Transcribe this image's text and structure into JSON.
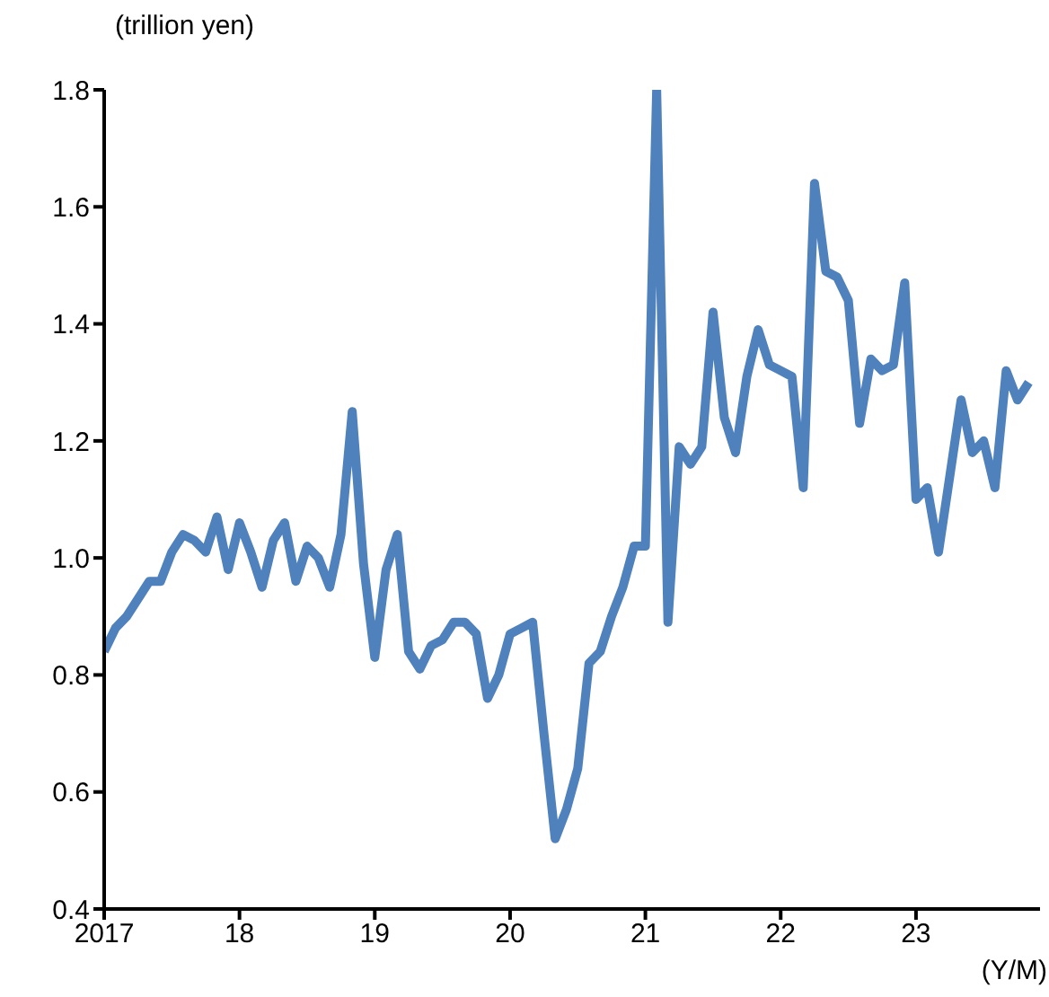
{
  "chart_data": {
    "type": "line",
    "xlabel": "(Y/M)",
    "ylabel": "(trillion yen)",
    "x": [
      "2017-01",
      "2017-02",
      "2017-03",
      "2017-04",
      "2017-05",
      "2017-06",
      "2017-07",
      "2017-08",
      "2017-09",
      "2017-10",
      "2017-11",
      "2017-12",
      "2018-01",
      "2018-02",
      "2018-03",
      "2018-04",
      "2018-05",
      "2018-06",
      "2018-07",
      "2018-08",
      "2018-09",
      "2018-10",
      "2018-11",
      "2018-12",
      "2019-01",
      "2019-02",
      "2019-03",
      "2019-04",
      "2019-05",
      "2019-06",
      "2019-07",
      "2019-08",
      "2019-09",
      "2019-10",
      "2019-11",
      "2019-12",
      "2020-01",
      "2020-02",
      "2020-03",
      "2020-04",
      "2020-05",
      "2020-06",
      "2020-07",
      "2020-08",
      "2020-09",
      "2020-10",
      "2020-11",
      "2020-12",
      "2021-01",
      "2021-02",
      "2021-03",
      "2021-04",
      "2021-05",
      "2021-06",
      "2021-07",
      "2021-08",
      "2021-09",
      "2021-10",
      "2021-11",
      "2021-12",
      "2022-01",
      "2022-02",
      "2022-03",
      "2022-04",
      "2022-05",
      "2022-06",
      "2022-07",
      "2022-08",
      "2022-09",
      "2022-10",
      "2022-11",
      "2022-12",
      "2023-01",
      "2023-02",
      "2023-03",
      "2023-04",
      "2023-05",
      "2023-06",
      "2023-07",
      "2023-08",
      "2023-09",
      "2023-10",
      "2023-11"
    ],
    "series": [
      {
        "color": "#4f81bd",
        "values": [
          0.84,
          0.88,
          0.9,
          0.93,
          0.96,
          0.96,
          1.01,
          1.04,
          1.03,
          1.01,
          1.07,
          0.98,
          1.06,
          1.01,
          0.95,
          1.03,
          1.06,
          0.96,
          1.02,
          1.0,
          0.95,
          1.04,
          1.25,
          0.99,
          0.83,
          0.98,
          1.04,
          0.84,
          0.81,
          0.85,
          0.86,
          0.89,
          0.89,
          0.87,
          0.76,
          0.8,
          0.87,
          0.88,
          0.89,
          0.7,
          0.52,
          0.57,
          0.64,
          0.82,
          0.84,
          0.9,
          0.95,
          1.02,
          1.02,
          1.8,
          0.89,
          1.19,
          1.16,
          1.19,
          1.42,
          1.24,
          1.18,
          1.31,
          1.39,
          1.33,
          1.32,
          1.31,
          1.12,
          1.64,
          1.49,
          1.48,
          1.44,
          1.23,
          1.34,
          1.32,
          1.33,
          1.47,
          1.1,
          1.12,
          1.01,
          1.14,
          1.27,
          1.18,
          1.2,
          1.12,
          1.32,
          1.27,
          1.3
        ]
      }
    ],
    "xlim": [
      "2017-01",
      "2023-12"
    ],
    "xticks": [
      {
        "value": "2017-01",
        "label": "2017"
      },
      {
        "value": "2018-01",
        "label": "18"
      },
      {
        "value": "2019-01",
        "label": "19"
      },
      {
        "value": "2020-01",
        "label": "20"
      },
      {
        "value": "2021-01",
        "label": "21"
      },
      {
        "value": "2022-01",
        "label": "22"
      },
      {
        "value": "2023-01",
        "label": "23"
      }
    ],
    "ylim": [
      0.4,
      1.8
    ],
    "yticks": [
      0.4,
      0.6,
      0.8,
      {
        "value": 1,
        "label": "1.0"
      },
      1.2,
      1.4,
      1.6,
      1.8
    ],
    "grid": false,
    "legend": false,
    "marker": "none",
    "line_style": "solid"
  }
}
